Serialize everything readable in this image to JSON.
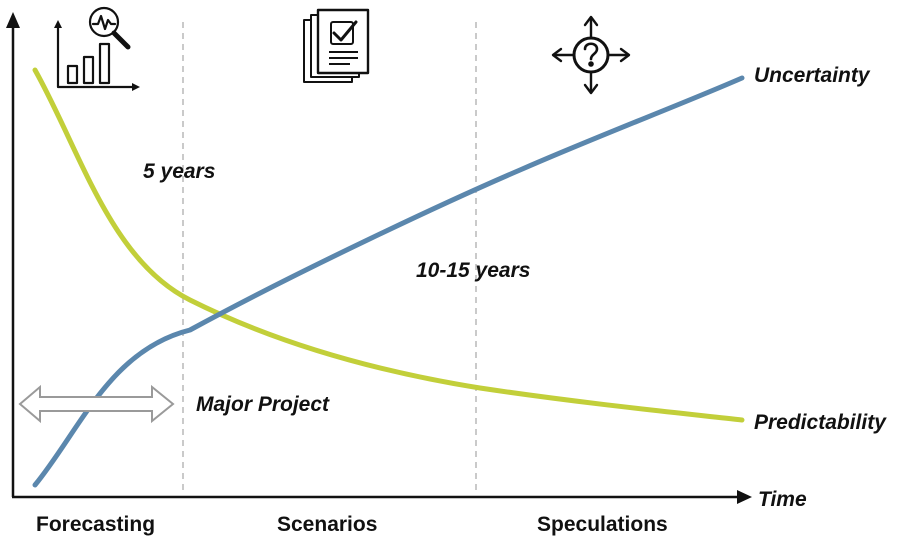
{
  "diagram": {
    "axes": {
      "x_label": "Time"
    },
    "curves": {
      "uncertainty": {
        "label": "Uncertainty",
        "color": "#5b87ad"
      },
      "predictability": {
        "label": "Predictability",
        "color": "#c2cf3a"
      }
    },
    "annotations": {
      "five_years": "5 years",
      "ten_fifteen_years": "10-15 years",
      "major_project": "Major Project"
    },
    "phases": [
      "Forecasting",
      "Scenarios",
      "Speculations"
    ],
    "icons": [
      "analytics-chart-icon",
      "document-checklist-icon",
      "question-directions-icon"
    ],
    "colors": {
      "axis": "#111111",
      "divider": "#b8b8b8",
      "arrow": "#9a9a9a"
    }
  }
}
